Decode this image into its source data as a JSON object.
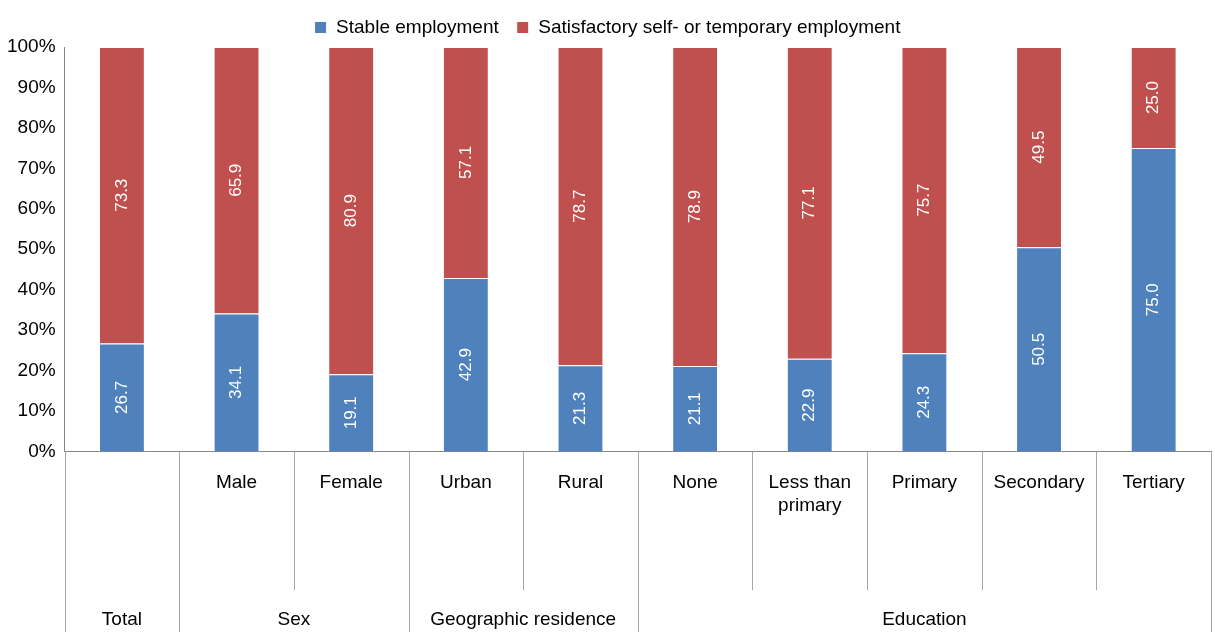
{
  "chart_data": {
    "type": "bar",
    "stacked": true,
    "categories": [
      null,
      "Male",
      "Female",
      "Urban",
      "Rural",
      "None",
      "Less than primary",
      "Primary",
      "Secondary",
      "Tertiary"
    ],
    "series": [
      {
        "name": "Stable employment",
        "color": "#4f81bd",
        "values": [
          26.7,
          34.1,
          19.1,
          42.9,
          21.3,
          21.1,
          22.9,
          24.3,
          50.5,
          75.0
        ],
        "value_labels": [
          "26.7",
          "34.1",
          "19.1",
          "42.9",
          "21.3",
          "21.1",
          "22.9",
          "24.3",
          "50.5",
          "75.0"
        ]
      },
      {
        "name": "Satisfactory self- or temporary employment",
        "color": "#c0504d",
        "values": [
          73.3,
          65.9,
          80.9,
          57.1,
          78.7,
          78.9,
          77.1,
          75.7,
          49.5,
          25.0
        ],
        "value_labels": [
          "73.3",
          "65.9",
          "80.9",
          "57.1",
          "78.7",
          "78.9",
          "77.1",
          "75.7",
          "49.5",
          "25.0"
        ]
      }
    ],
    "ylim": [
      0,
      100
    ],
    "yticks": [
      {
        "value": 0,
        "label": "0%"
      },
      {
        "value": 10,
        "label": "10%"
      },
      {
        "value": 20,
        "label": "20%"
      },
      {
        "value": 30,
        "label": "30%"
      },
      {
        "value": 40,
        "label": "40%"
      },
      {
        "value": 50,
        "label": "50%"
      },
      {
        "value": 60,
        "label": "60%"
      },
      {
        "value": 70,
        "label": "70%"
      },
      {
        "value": 80,
        "label": "80%"
      },
      {
        "value": 90,
        "label": "90%"
      },
      {
        "value": 100,
        "label": "100%"
      }
    ],
    "annotations": [
      "Total",
      "Sex",
      "Geographic residence",
      "Education"
    ],
    "grid": false,
    "legend": "top"
  }
}
